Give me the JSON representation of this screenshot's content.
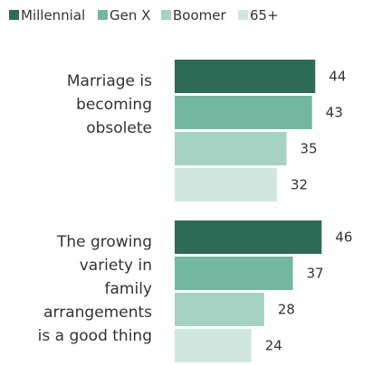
{
  "chart_data": {
    "type": "bar",
    "orientation": "horizontal",
    "legend_position": "top",
    "grid": false,
    "colors": [
      "#2e6b57",
      "#72b8a1",
      "#a5d2c2",
      "#cfe7df"
    ],
    "categories": [
      [
        "Marriage is",
        "becoming",
        "obsolete"
      ],
      [
        "The growing",
        "variety in",
        "family",
        "arrangements",
        "is a good thing"
      ]
    ],
    "series": [
      {
        "name": "Millennial",
        "values": [
          44,
          46
        ]
      },
      {
        "name": "Gen X",
        "values": [
          43,
          37
        ]
      },
      {
        "name": "Boomer",
        "values": [
          35,
          28
        ]
      },
      {
        "name": "65+",
        "values": [
          32,
          24
        ]
      }
    ]
  }
}
